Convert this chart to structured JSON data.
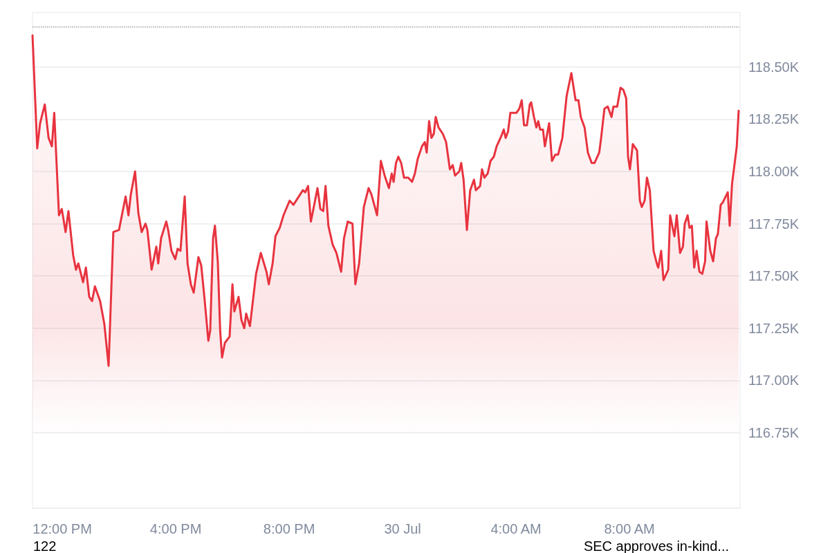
{
  "chart_data": {
    "type": "area",
    "x": [
      "--07-29T10:57",
      "--07-29T11:07",
      "--07-29T11:13",
      "--07-29T11:23",
      "--07-29T11:31",
      "--07-29T11:38",
      "--07-29T11:43",
      "--07-29T11:53",
      "--07-29T11:59",
      "--07-29T12:07",
      "--07-29T12:13",
      "--07-29T12:23",
      "--07-29T12:29",
      "--07-29T12:34",
      "--07-29T12:44",
      "--07-29T12:50",
      "--07-29T12:57",
      "--07-29T13:03",
      "--07-29T13:09",
      "--07-29T13:20",
      "--07-29T13:29",
      "--07-29T13:38",
      "--07-29T13:48",
      "--07-29T14:00",
      "--07-29T14:14",
      "--07-29T14:20",
      "--07-29T14:25",
      "--07-29T14:34",
      "--07-29T14:41",
      "--07-29T14:48",
      "--07-29T14:56",
      "--07-29T15:00",
      "--07-29T15:09",
      "--07-29T15:19",
      "--07-29T15:23",
      "--07-29T15:29",
      "--07-29T15:40",
      "--07-29T15:44",
      "--07-29T15:51",
      "--07-29T15:59",
      "--07-29T16:04",
      "--07-29T16:10",
      "--07-29T16:19",
      "--07-29T16:25",
      "--07-29T16:32",
      "--07-29T16:38",
      "--07-29T16:48",
      "--07-29T16:54",
      "--07-29T17:01",
      "--07-29T17:09",
      "--07-29T17:13",
      "--07-29T17:19",
      "--07-29T17:23",
      "--07-29T17:29",
      "--07-29T17:34",
      "--07-29T17:38",
      "--07-29T17:44",
      "--07-29T17:54",
      "--07-29T18:00",
      "--07-29T18:04",
      "--07-29T18:13",
      "--07-29T18:19",
      "--07-29T18:25",
      "--07-29T18:29",
      "--07-29T18:37",
      "--07-29T18:50",
      "--07-29T19:00",
      "--07-29T19:12",
      "--07-29T19:17",
      "--07-29T19:25",
      "--07-29T19:31",
      "--07-29T19:40",
      "--07-29T19:48",
      "--07-29T20:01",
      "--07-29T20:09",
      "--07-29T20:29",
      "--07-29T20:34",
      "--07-29T20:40",
      "--07-29T20:46",
      "--07-29T21:00",
      "--07-29T21:06",
      "--07-29T21:12",
      "--07-29T21:17",
      "--07-29T21:23",
      "--07-29T21:32",
      "--07-29T21:40",
      "--07-29T21:50",
      "--07-29T21:56",
      "--07-29T22:04",
      "--07-29T22:14",
      "--07-29T22:20",
      "--07-29T22:28",
      "--07-29T22:38",
      "--07-29T22:48",
      "--07-29T22:54",
      "--07-29T23:06",
      "--07-29T23:14",
      "--07-29T23:22",
      "--07-29T23:31",
      "--07-29T23:37",
      "--07-29T23:41",
      "--07-29T23:46",
      "--07-29T23:51",
      "--07-29T23:57",
      "--07-30T00:03",
      "--07-30T00:12",
      "--07-30T00:20",
      "--07-30T00:26",
      "--07-30T00:32",
      "--07-30T00:41",
      "--07-30T00:47",
      "--07-30T00:51",
      "--07-30T00:56",
      "--07-30T01:01",
      "--07-30T01:06",
      "--07-30T01:10",
      "--07-30T01:16",
      "--07-30T01:25",
      "--07-30T01:32",
      "--07-30T01:40",
      "--07-30T01:46",
      "--07-30T01:51",
      "--07-30T02:00",
      "--07-30T02:04",
      "--07-30T02:09",
      "--07-30T02:16",
      "--07-30T02:23",
      "--07-30T02:31",
      "--07-30T02:35",
      "--07-30T02:44",
      "--07-30T02:48",
      "--07-30T02:53",
      "--07-30T03:00",
      "--07-30T03:06",
      "--07-30T03:13",
      "--07-30T03:19",
      "--07-30T03:25",
      "--07-30T03:29",
      "--07-30T03:34",
      "--07-30T03:38",
      "--07-30T03:43",
      "--07-30T03:48",
      "--07-30T04:01",
      "--07-30T04:07",
      "--07-30T04:12",
      "--07-30T04:17",
      "--07-30T04:23",
      "--07-30T04:29",
      "--07-30T04:32",
      "--07-30T04:38",
      "--07-30T04:43",
      "--07-30T04:47",
      "--07-30T04:51",
      "--07-30T04:57",
      "--07-30T05:01",
      "--07-30T05:10",
      "--07-30T05:16",
      "--07-30T05:23",
      "--07-30T05:29",
      "--07-30T05:38",
      "--07-30T05:47",
      "--07-30T05:57",
      "--07-30T06:06",
      "--07-30T06:12",
      "--07-30T06:17",
      "--07-30T06:25",
      "--07-30T06:32",
      "--07-30T06:40",
      "--07-30T06:46",
      "--07-30T06:56",
      "--07-30T07:00",
      "--07-30T07:07",
      "--07-30T07:14",
      "--07-30T07:22",
      "--07-30T07:26",
      "--07-30T07:34",
      "--07-30T07:41",
      "--07-30T07:47",
      "--07-30T07:53",
      "--07-30T07:57",
      "--07-30T08:01",
      "--07-30T08:07",
      "--07-30T08:16",
      "--07-30T08:22",
      "--07-30T08:26",
      "--07-30T08:32",
      "--07-30T08:37",
      "--07-30T08:43",
      "--07-30T08:51",
      "--07-30T08:59",
      "--07-30T09:01",
      "--07-30T09:07",
      "--07-30T09:12",
      "--07-30T09:22",
      "--07-30T09:26",
      "--07-30T09:35",
      "--07-30T09:40",
      "--07-30T09:47",
      "--07-30T09:53",
      "--07-30T09:57",
      "--07-30T10:03",
      "--07-30T10:07",
      "--07-30T10:12",
      "--07-30T10:17",
      "--07-30T10:22",
      "--07-30T10:28",
      "--07-30T10:34",
      "--07-30T10:40",
      "--07-30T10:43",
      "--07-30T10:51",
      "--07-30T10:57",
      "--07-30T11:03",
      "--07-30T11:07",
      "--07-30T11:13",
      "--07-30T11:17",
      "--07-30T11:28",
      "--07-30T11:32",
      "--07-30T11:37",
      "--07-30T11:47",
      "--07-30T11:51"
    ],
    "series": [
      {
        "color": "#e8333f",
        "values": [
          118.65,
          118.11,
          118.23,
          118.32,
          118.16,
          118.12,
          118.28,
          117.79,
          117.82,
          117.71,
          117.81,
          117.6,
          117.53,
          117.56,
          117.47,
          117.54,
          117.4,
          117.38,
          117.45,
          117.38,
          117.27,
          117.07,
          117.71,
          117.72,
          117.88,
          117.79,
          117.89,
          118.0,
          117.8,
          117.71,
          117.75,
          117.72,
          117.53,
          117.64,
          117.56,
          117.68,
          117.76,
          117.72,
          117.62,
          117.58,
          117.63,
          117.62,
          117.88,
          117.56,
          117.46,
          117.42,
          117.59,
          117.55,
          117.39,
          117.19,
          117.24,
          117.68,
          117.74,
          117.57,
          117.24,
          117.11,
          117.18,
          117.21,
          117.46,
          117.33,
          117.4,
          117.29,
          117.25,
          117.32,
          117.26,
          117.51,
          117.61,
          117.52,
          117.46,
          117.56,
          117.69,
          117.73,
          117.79,
          117.86,
          117.84,
          117.91,
          117.9,
          117.93,
          117.76,
          117.92,
          117.82,
          117.81,
          117.93,
          117.74,
          117.65,
          117.61,
          117.52,
          117.68,
          117.76,
          117.75,
          117.46,
          117.56,
          117.83,
          117.92,
          117.89,
          117.79,
          118.05,
          117.98,
          117.92,
          117.99,
          117.95,
          118.04,
          118.07,
          118.04,
          117.97,
          117.97,
          117.95,
          117.99,
          118.06,
          118.12,
          118.14,
          118.09,
          118.24,
          118.16,
          118.18,
          118.26,
          118.21,
          118.18,
          118.14,
          118.01,
          118.03,
          117.98,
          118.0,
          118.04,
          117.96,
          117.72,
          117.91,
          117.96,
          117.91,
          117.93,
          118.01,
          117.97,
          117.99,
          118.05,
          118.07,
          118.12,
          118.15,
          118.17,
          118.2,
          118.16,
          118.19,
          118.28,
          118.28,
          118.3,
          118.34,
          118.22,
          118.22,
          118.32,
          118.33,
          118.26,
          118.21,
          118.24,
          118.2,
          118.2,
          118.12,
          118.23,
          118.05,
          118.08,
          118.08,
          118.16,
          118.36,
          118.47,
          118.34,
          118.34,
          118.26,
          118.21,
          118.09,
          118.04,
          118.04,
          118.09,
          118.16,
          118.3,
          118.31,
          118.26,
          118.31,
          118.31,
          118.4,
          118.39,
          118.35,
          118.07,
          118.01,
          118.13,
          118.1,
          117.86,
          117.83,
          117.86,
          117.97,
          117.91,
          117.62,
          117.55,
          117.54,
          117.62,
          117.48,
          117.53,
          117.79,
          117.69,
          117.79,
          117.61,
          117.64,
          117.75,
          117.79,
          117.73,
          117.74,
          117.54,
          117.62,
          117.52,
          117.51,
          117.57,
          117.76,
          117.62,
          117.57,
          117.68,
          117.7,
          117.84,
          117.85,
          117.9,
          117.74,
          117.94,
          118.12,
          118.29
        ]
      }
    ],
    "xlim": [
      "--07-29T10:57",
      "--07-30T11:54"
    ],
    "xticks": [
      {
        "value": "--07-29T12:00",
        "label": "12:00 PM"
      },
      {
        "value": "--07-29T16:00",
        "label": "4:00 PM"
      },
      {
        "value": "--07-29T20:00",
        "label": "8:00 PM"
      },
      {
        "value": "--07-30T00:00",
        "label": "30 Jul"
      },
      {
        "value": "--07-30T04:00",
        "label": "4:00 AM"
      },
      {
        "value": "--07-30T08:00",
        "label": "8:00 AM"
      }
    ],
    "ylim": [
      116.39,
      118.76
    ],
    "yticks": [
      {
        "value": 116.75,
        "label": "116.75K"
      },
      {
        "value": 117,
        "label": "117.00K"
      },
      {
        "value": 117.25,
        "label": "117.25K"
      },
      {
        "value": 117.5,
        "label": "117.50K"
      },
      {
        "value": 117.75,
        "label": "117.75K"
      },
      {
        "value": 118,
        "label": "118.00K"
      },
      {
        "value": 118.25,
        "label": "118.25K"
      },
      {
        "value": 118.5,
        "label": "118.50K"
      }
    ],
    "grid": "y",
    "marker": "none",
    "line_style": "solid",
    "ref_lines": [
      {
        "axis": "y",
        "value": 118.69,
        "color": "#9aa0a6",
        "line_style": "dotted"
      }
    ],
    "annotations": [
      "122",
      "SEC approves in-kind..."
    ]
  }
}
